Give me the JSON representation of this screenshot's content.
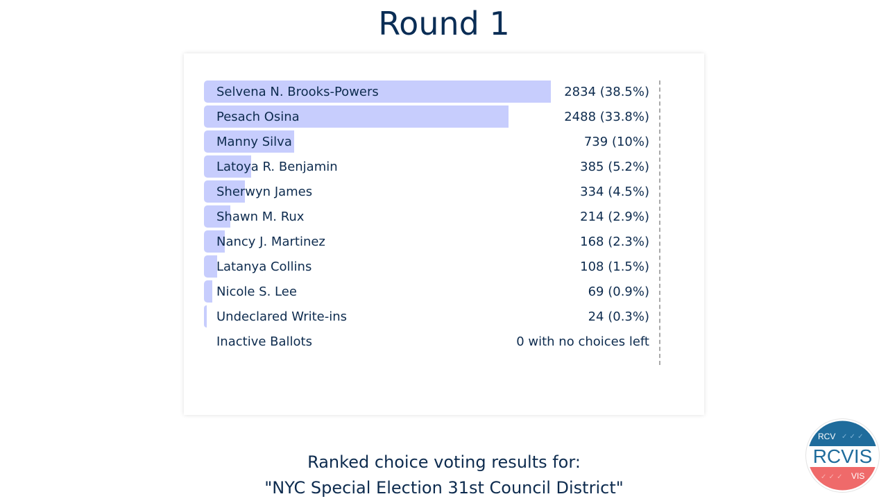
{
  "header": {
    "title": "Round 1"
  },
  "chart_data": {
    "type": "bar",
    "orientation": "horizontal",
    "categories": [
      "Selvena N. Brooks-Powers",
      "Pesach Osina",
      "Manny Silva",
      "Latoya R. Benjamin",
      "Sherwyn James",
      "Shawn M. Rux",
      "Nancy J. Martinez",
      "Latanya Collins",
      "Nicole S. Lee",
      "Undeclared Write-ins"
    ],
    "values": [
      2834,
      2488,
      739,
      385,
      334,
      214,
      168,
      108,
      69,
      24
    ],
    "labels": [
      "2834 (38.5%)",
      "2488 (33.8%)",
      "739 (10%)",
      "385 (5.2%)",
      "334 (4.5%)",
      "214 (2.9%)",
      "168 (2.3%)",
      "108 (1.5%)",
      "69 (0.9%)",
      "24 (0.3%)"
    ],
    "inactive": {
      "label": "Inactive Ballots",
      "value": 0,
      "text": "0 with no choices left"
    },
    "title": "Round 1",
    "xlabel": "",
    "ylabel": "",
    "grid": false,
    "threshold_line": "dashed",
    "colors": {
      "bar": "#c7cdfd",
      "text": "#0d2b4e",
      "threshold": "#a9a9a9"
    }
  },
  "footer": {
    "line1": "Ranked choice voting results for:",
    "line2": "\"NYC Special Election 31st Council District\""
  },
  "logo": {
    "top_text": "RCV",
    "main_text": "RCVIS",
    "bottom_text": "VIS",
    "colors": {
      "top": "#1f6c9c",
      "bottom": "#ef6a6a"
    }
  }
}
